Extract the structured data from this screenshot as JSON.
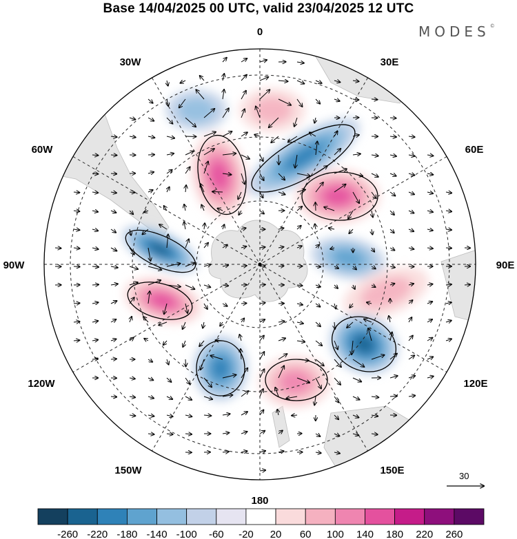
{
  "title": "Base 14/04/2025 00 UTC, valid 23/04/2025 12 UTC",
  "brand": "MODES",
  "brand_mark": "©",
  "longitude_labels": {
    "n": "0",
    "e30": "30E",
    "e60": "60E",
    "e90": "90E",
    "e120": "120E",
    "e150": "150E",
    "s": "180",
    "w150": "150W",
    "w120": "120W",
    "w90": "90W",
    "w60": "60W",
    "w30": "30W"
  },
  "reference_vector": "30",
  "colorbar": {
    "ticks": [
      "-260",
      "-220",
      "-180",
      "-140",
      "-100",
      "-60",
      "-20",
      "20",
      "60",
      "100",
      "140",
      "180",
      "220",
      "260"
    ],
    "colors": [
      "#14405e",
      "#1a6390",
      "#2f82b8",
      "#5fa3cf",
      "#94bfe0",
      "#c2d1e8",
      "#e6e4f1",
      "#ffffff",
      "#fadbdc",
      "#f5b1c0",
      "#ef85b0",
      "#e4519e",
      "#c51c89",
      "#8e0f7c",
      "#5c0a65"
    ]
  },
  "anomalies": [
    {
      "name": "high-north",
      "sign": "pos",
      "level": 2
    },
    {
      "name": "high-nnw",
      "sign": "pos",
      "level": 4
    },
    {
      "name": "low-nne",
      "sign": "neg",
      "level": 4
    },
    {
      "name": "high-ne",
      "sign": "pos",
      "level": 4
    },
    {
      "name": "low-east",
      "sign": "neg",
      "level": 3
    },
    {
      "name": "high-east",
      "sign": "pos",
      "level": 2
    },
    {
      "name": "low-se",
      "sign": "neg",
      "level": 5
    },
    {
      "name": "high-south",
      "sign": "pos",
      "level": 3
    },
    {
      "name": "low-ssw",
      "sign": "neg",
      "level": 4
    },
    {
      "name": "high-west",
      "sign": "pos",
      "level": 4
    },
    {
      "name": "low-west",
      "sign": "neg",
      "level": 5
    },
    {
      "name": "low-nw",
      "sign": "neg",
      "level": 2
    }
  ]
}
